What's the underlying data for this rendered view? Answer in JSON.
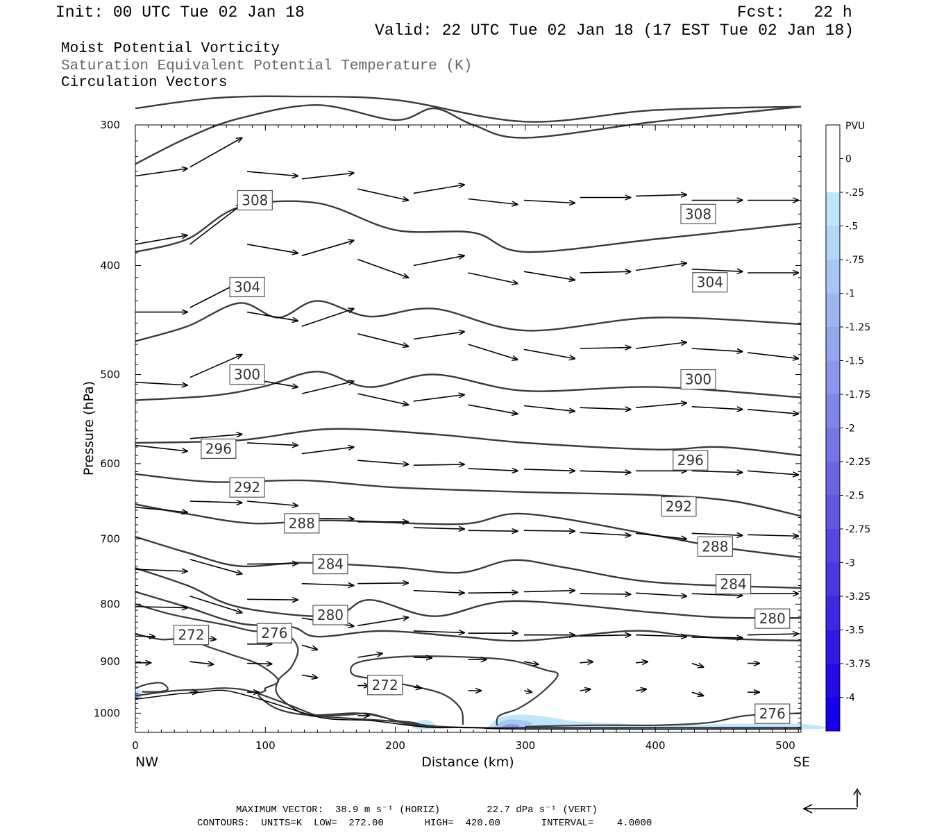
{
  "header": {
    "init": "Init: 00 UTC Tue 02 Jan 18",
    "fcst": "Fcst:   22 h",
    "valid": "Valid: 22 UTC Tue 02 Jan 18 (17 EST Tue 02 Jan 18)"
  },
  "fields": {
    "line1": "Moist Potential Vorticity",
    "line2": "Saturation Equivalent Potential Temperature (K)",
    "line3": "Circulation Vectors"
  },
  "footer": {
    "max_vector": "MAXIMUM VECTOR:  38.9 m s⁻¹ (HORIZ)        22.7 dPa s⁻¹ (VERT)",
    "contours": "CONTOURS:  UNITS=K  LOW=  272.00       HIGH=  420.00       INTERVAL=    4.0000"
  },
  "chart_data": {
    "type": "contour",
    "xlabel": "Distance (km)",
    "ylabel": "Pressure (hPa)",
    "xlim": [
      0,
      512
    ],
    "ylim": [
      1040,
      300
    ],
    "y_scale": "log",
    "x_ticks": [
      0,
      100,
      200,
      300,
      400,
      500
    ],
    "y_ticks": [
      300,
      400,
      500,
      600,
      700,
      800,
      900,
      1000
    ],
    "x_end_labels": {
      "left": "NW",
      "right": "SE"
    },
    "colorbar": {
      "unit": "PVU",
      "labels": [
        "0",
        "-.25",
        "-.5",
        "-.75",
        "-1",
        "-1.25",
        "-1.5",
        "-1.75",
        "-2",
        "-2.25",
        "-2.5",
        "-2.75",
        "-3",
        "-3.25",
        "-3.5",
        "-3.75",
        "-4"
      ],
      "colors": [
        "#ffffff",
        "#ffffff",
        "#bfe7fb",
        "#b3d7f7",
        "#a8c6f3",
        "#9db6ef",
        "#93a6ec",
        "#8996e9",
        "#7e86e6",
        "#7476e4",
        "#6a66e2",
        "#5f56e1",
        "#5546e1",
        "#4a37e1",
        "#3f28e2",
        "#3218e4",
        "#240ae6",
        "#1400eb"
      ]
    },
    "contour_labels": [
      {
        "value": "308",
        "x": 92,
        "p": 350
      },
      {
        "value": "308",
        "x": 433,
        "p": 360
      },
      {
        "value": "304",
        "x": 86,
        "p": 418
      },
      {
        "value": "304",
        "x": 442,
        "p": 414
      },
      {
        "value": "300",
        "x": 86,
        "p": 500
      },
      {
        "value": "300",
        "x": 433,
        "p": 505
      },
      {
        "value": "296",
        "x": 64,
        "p": 582
      },
      {
        "value": "296",
        "x": 427,
        "p": 596
      },
      {
        "value": "292",
        "x": 86,
        "p": 630
      },
      {
        "value": "292",
        "x": 418,
        "p": 655
      },
      {
        "value": "288",
        "x": 128,
        "p": 678
      },
      {
        "value": "288",
        "x": 446,
        "p": 711
      },
      {
        "value": "284",
        "x": 150,
        "p": 737
      },
      {
        "value": "284",
        "x": 460,
        "p": 768
      },
      {
        "value": "280",
        "x": 150,
        "p": 818
      },
      {
        "value": "280",
        "x": 490,
        "p": 824
      },
      {
        "value": "276",
        "x": 107,
        "p": 849
      },
      {
        "value": "276",
        "x": 490,
        "p": 1001
      },
      {
        "value": "272",
        "x": 43,
        "p": 852
      },
      {
        "value": "272",
        "x": 192,
        "p": 944
      }
    ],
    "contours": [
      {
        "theta": 308,
        "points": [
          [
            0,
            290
          ],
          [
            60,
            284
          ],
          [
            120,
            283
          ],
          [
            200,
            285
          ],
          [
            300,
            298
          ],
          [
            400,
            291
          ],
          [
            512,
            289
          ]
        ]
      },
      {
        "theta": 308,
        "points": [
          [
            0,
            325
          ],
          [
            40,
            308
          ],
          [
            80,
            296
          ],
          [
            140,
            288
          ],
          [
            200,
            297
          ],
          [
            230,
            290
          ],
          [
            260,
            300
          ],
          [
            300,
            308
          ],
          [
            400,
            298
          ],
          [
            512,
            289
          ]
        ]
      },
      {
        "theta": 308,
        "points": [
          [
            0,
            389
          ],
          [
            40,
            379
          ],
          [
            80,
            355
          ],
          [
            140,
            352
          ],
          [
            200,
            372
          ],
          [
            260,
            374
          ],
          [
            300,
            389
          ],
          [
            400,
            379
          ],
          [
            512,
            367
          ]
        ]
      },
      {
        "theta": 304,
        "points": [
          [
            0,
            467
          ],
          [
            40,
            453
          ],
          [
            80,
            432
          ],
          [
            110,
            445
          ],
          [
            140,
            430
          ],
          [
            180,
            444
          ],
          [
            230,
            437
          ],
          [
            300,
            457
          ],
          [
            400,
            445
          ],
          [
            512,
            451
          ]
        ]
      },
      {
        "theta": 300,
        "points": [
          [
            0,
            527
          ],
          [
            60,
            522
          ],
          [
            100,
            512
          ],
          [
            140,
            497
          ],
          [
            180,
            513
          ],
          [
            230,
            500
          ],
          [
            300,
            517
          ],
          [
            400,
            513
          ],
          [
            512,
            524
          ]
        ]
      },
      {
        "theta": 296,
        "points": [
          [
            0,
            575
          ],
          [
            80,
            572
          ],
          [
            150,
            559
          ],
          [
            230,
            565
          ],
          [
            300,
            575
          ],
          [
            400,
            583
          ],
          [
            450,
            580
          ],
          [
            512,
            590
          ]
        ]
      },
      {
        "theta": 292,
        "points": [
          [
            0,
            613
          ],
          [
            60,
            623
          ],
          [
            130,
            621
          ],
          [
            200,
            630
          ],
          [
            300,
            636
          ],
          [
            400,
            640
          ],
          [
            460,
            648
          ],
          [
            512,
            668
          ]
        ]
      },
      {
        "theta": 288,
        "points": [
          [
            0,
            652
          ],
          [
            40,
            665
          ],
          [
            90,
            678
          ],
          [
            150,
            674
          ],
          [
            250,
            679
          ],
          [
            300,
            665
          ],
          [
            400,
            695
          ],
          [
            450,
            712
          ],
          [
            512,
            727
          ]
        ]
      },
      {
        "theta": 284,
        "points": [
          [
            0,
            697
          ],
          [
            40,
            720
          ],
          [
            80,
            740
          ],
          [
            130,
            735
          ],
          [
            200,
            742
          ],
          [
            250,
            750
          ],
          [
            290,
            731
          ],
          [
            330,
            742
          ],
          [
            400,
            765
          ],
          [
            512,
            774
          ]
        ]
      },
      {
        "theta": 280,
        "points": [
          [
            0,
            743
          ],
          [
            40,
            770
          ],
          [
            80,
            805
          ],
          [
            150,
            820
          ],
          [
            180,
            793
          ],
          [
            230,
            820
          ],
          [
            290,
            795
          ],
          [
            400,
            814
          ],
          [
            450,
            822
          ],
          [
            512,
            823
          ]
        ]
      },
      {
        "theta": 276,
        "points": [
          [
            0,
            780
          ],
          [
            40,
            805
          ],
          [
            80,
            832
          ],
          [
            120,
            838
          ],
          [
            140,
            855
          ],
          [
            190,
            845
          ],
          [
            250,
            855
          ],
          [
            300,
            862
          ],
          [
            380,
            845
          ],
          [
            420,
            852
          ],
          [
            460,
            859
          ],
          [
            512,
            862
          ]
        ]
      }
    ]
  }
}
